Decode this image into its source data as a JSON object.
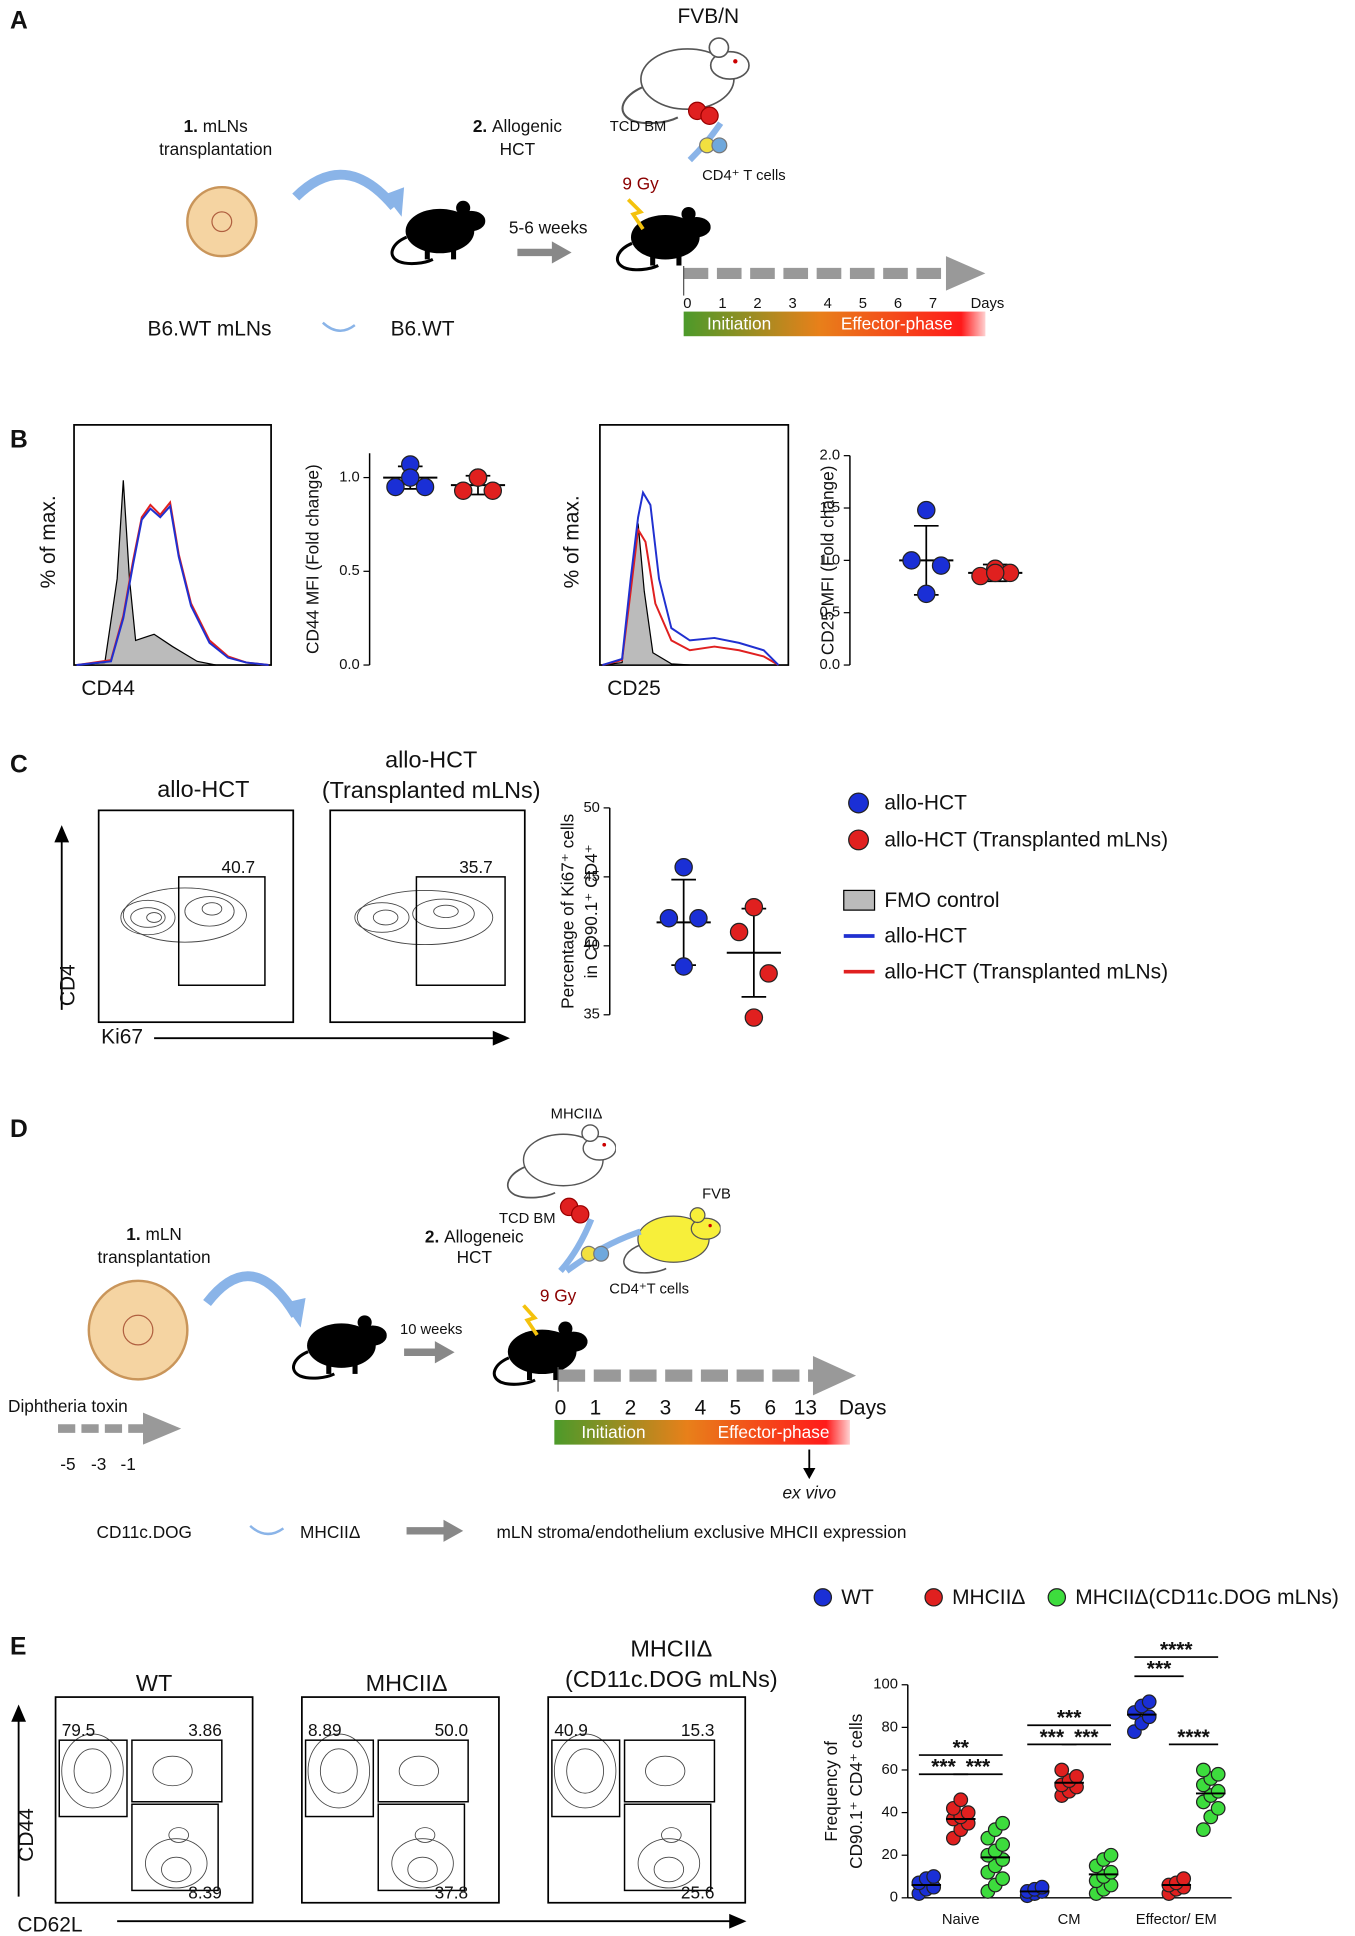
{
  "panel_labels": [
    "A",
    "B",
    "C",
    "D",
    "E"
  ],
  "a": {
    "donor": "FVB/N",
    "tcd_bm": "TCD BM",
    "cd4": "CD4⁺ T cells",
    "step1_num": "1.",
    "step1": [
      "mLNs",
      "transplantation"
    ],
    "step2_num": "2.",
    "step2": [
      "Allogenic",
      "HCT"
    ],
    "dose": "9 Gy",
    "interval": "5-6 weeks",
    "source": "B6.WT mLNs",
    "recipient": "B6.WT",
    "days": [
      "0",
      "1",
      "2",
      "3",
      "4",
      "5",
      "6",
      "7"
    ],
    "days_label": "Days",
    "initiation": "Initiation",
    "effector": "Effector-phase"
  },
  "b": {
    "ylabel": "% of max.",
    "marker1": "CD44",
    "marker2": "CD25"
  },
  "c": {
    "titles": [
      "allo-HCT",
      "allo-HCT",
      "(Transplanted mLNs)"
    ],
    "gates": [
      "40.7",
      "35.7"
    ],
    "yaxis": "CD4",
    "xaxis": "Ki67",
    "legend_lines": [
      {
        "label": "FMO control",
        "color": "#bbbbbb"
      },
      {
        "label": "allo-HCT",
        "color": "#2030d0"
      },
      {
        "label": "allo-HCT (Transplanted mLNs)",
        "color": "#e02020"
      }
    ]
  },
  "d": {
    "donor": "MHCIIΔ",
    "tcd_bm": "TCD BM",
    "donor2": "FVB",
    "cd4": "CD4⁺T cells",
    "step1_num": "1.",
    "step1": [
      "mLN",
      "transplantation"
    ],
    "step2_num": "2.",
    "step2": [
      "Allogeneic",
      "HCT"
    ],
    "dose": "9 Gy",
    "interval": "10 weeks",
    "days": [
      "0",
      "1",
      "2",
      "3",
      "4",
      "5",
      "6",
      "13"
    ],
    "days_label": "Days",
    "initiation": "Initiation",
    "effector": "Effector-phase",
    "ex_vivo": "ex vivo",
    "toxin": "Diphtheria toxin",
    "toxin_days": [
      "-5",
      "-3",
      "-1"
    ],
    "source": "CD11c.DOG",
    "recipient": "MHCIIΔ",
    "result": "mLN stroma/endothelium exclusive MHCII expression"
  },
  "e": {
    "titles": [
      "WT",
      "MHCIIΔ",
      "MHCIIΔ",
      "(CD11c.DOG mLNs)"
    ],
    "gates": [
      [
        "79.5",
        "3.86",
        "8.39"
      ],
      [
        "8.89",
        "50.0",
        "37.8"
      ],
      [
        "40.9",
        "15.3",
        "25.6"
      ]
    ],
    "yaxis": "CD44",
    "xaxis": "CD62L"
  },
  "chart_data": [
    {
      "type": "dot",
      "ylabel": [
        "CD44 MFI (Fold change)"
      ],
      "ylim": [
        0,
        1.13
      ],
      "yticks": [
        {
          "value": 0,
          "label": "0.0"
        },
        {
          "value": 0.5,
          "label": "0.5"
        },
        {
          "value": 1,
          "label": "1.0"
        }
      ],
      "series": [
        {
          "color": "#1a2fd6",
          "values": [
            1.07,
            0.95,
            0.95,
            1.0
          ],
          "mean": 1.0,
          "sd": 0.06
        },
        {
          "color": "#e0201f",
          "values": [
            1.0,
            0.93,
            0.93,
            1.0
          ],
          "mean": 0.96,
          "sd": 0.05
        }
      ]
    },
    {
      "type": "dot",
      "ylabel": [
        "CD25 MFI (Fold change)"
      ],
      "ylim": [
        0,
        2
      ],
      "yticks": [
        {
          "value": 0,
          "label": "0.0"
        },
        {
          "value": 0.5,
          "label": "0.5"
        },
        {
          "value": 1,
          "label": "1.0"
        },
        {
          "value": 1.5,
          "label": "1.5"
        },
        {
          "value": 2,
          "label": "2.0"
        }
      ],
      "series": [
        {
          "color": "#1a2fd6",
          "values": [
            1.48,
            1.0,
            0.95,
            0.68
          ],
          "mean": 1.0,
          "sd": 0.33
        },
        {
          "color": "#e0201f",
          "values": [
            0.92,
            0.85,
            0.88,
            0.88
          ],
          "mean": 0.88,
          "sd": 0.08
        }
      ]
    },
    {
      "type": "dot",
      "ylabel": [
        "Percentage of Ki67⁺ cells",
        "in CD90.1⁺ CD4⁺"
      ],
      "ylim": [
        35,
        50
      ],
      "yticks": [
        35,
        40,
        45,
        50
      ],
      "series": [
        {
          "name": "allo-HCT",
          "color": "#1a2fd6",
          "values": [
            45.7,
            42,
            42,
            38.5
          ],
          "mean": 41.7,
          "sd": 3.1
        },
        {
          "name": "allo-HCT (Transplanted mLNs)",
          "color": "#e0201f",
          "values": [
            42.8,
            41,
            38,
            34.8
          ],
          "mean": 39.5,
          "sd": 3.2
        }
      ]
    },
    {
      "type": "grouped_dot",
      "ylabel": [
        "Frequency of",
        "CD90.1⁺ CD4⁺ cells"
      ],
      "ylim": [
        0,
        100
      ],
      "yticks": [
        0,
        20,
        40,
        60,
        80,
        100
      ],
      "categories": [
        "Naive",
        "CM",
        "Effector/ EM"
      ],
      "series": [
        {
          "name": "WT",
          "color": "#1a2fd6",
          "values": [
            [
              2,
              4,
              5,
              7,
              9,
              10
            ],
            [
              1,
              2,
              3,
              3,
              4,
              5
            ],
            [
              78,
              82,
              85,
              87,
              90,
              92
            ]
          ],
          "means": [
            6,
            3,
            86
          ]
        },
        {
          "name": "MHCIIΔ",
          "color": "#e0201f",
          "values": [
            [
              28,
              32,
              35,
              37,
              38,
              40,
              42,
              46
            ],
            [
              48,
              50,
              52,
              53,
              55,
              57,
              60
            ],
            [
              2,
              4,
              5,
              6,
              7,
              9
            ]
          ],
          "means": [
            37,
            54,
            6
          ]
        },
        {
          "name": "MHCIIΔ(CD11c.DOG mLNs)",
          "color": "#3ddc3d",
          "values": [
            [
              3,
              6,
              9,
              12,
              15,
              18,
              20,
              22,
              25,
              28,
              32,
              35
            ],
            [
              2,
              4,
              6,
              8,
              10,
              12,
              15,
              18,
              20
            ],
            [
              32,
              38,
              42,
              45,
              48,
              50,
              53,
              56,
              58,
              60
            ]
          ],
          "means": [
            19,
            11,
            49
          ]
        }
      ],
      "annotations": [
        {
          "label": "**",
          "category": 0,
          "pair": [
            0,
            2
          ]
        },
        {
          "label": "***",
          "category": 0,
          "pair": [
            0,
            1
          ]
        },
        {
          "label": "***",
          "category": 0,
          "pair": [
            1,
            2
          ]
        },
        {
          "label": "***",
          "category": 1,
          "pair": [
            0,
            2
          ]
        },
        {
          "label": "***",
          "category": 1,
          "pair": [
            0,
            1
          ]
        },
        {
          "label": "***",
          "category": 1,
          "pair": [
            1,
            2
          ]
        },
        {
          "label": "****",
          "category": 2,
          "pair": [
            0,
            2
          ]
        },
        {
          "label": "***",
          "category": 2,
          "pair": [
            0,
            1
          ]
        },
        {
          "label": "****",
          "category": 2,
          "pair": [
            1,
            2
          ]
        }
      ]
    }
  ]
}
